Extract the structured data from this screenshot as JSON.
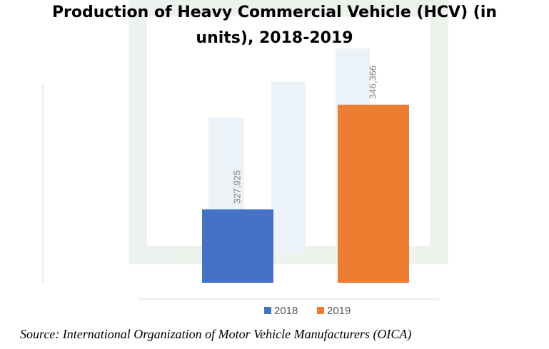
{
  "chart_data": {
    "type": "bar",
    "title": "Production of Heavy Commercial Vehicle (HCV) (in units), 2018-2019",
    "series": [
      {
        "name": "2018",
        "color": "#4472c4",
        "values": [
          327925
        ],
        "value_labels": [
          "327,925"
        ]
      },
      {
        "name": "2019",
        "color": "#ed7d31",
        "values": [
          346366
        ],
        "value_labels": [
          "346,366"
        ]
      }
    ],
    "ylim": [
      315000,
      350000
    ],
    "legend": "bottom",
    "source": "Source: International Organization of Motor Vehicle Manufacturers (OICA)"
  }
}
